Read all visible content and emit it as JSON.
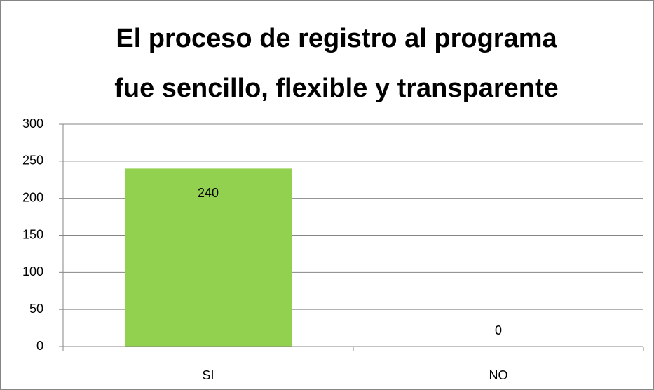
{
  "chart_data": {
    "type": "bar",
    "title": [
      "El proceso de registro al programa",
      "fue sencillo, flexible y transparente"
    ],
    "categories": [
      "SI",
      "NO"
    ],
    "values": [
      240,
      0
    ],
    "color": "#92d050",
    "ylim": [
      0,
      300
    ],
    "yticks": [
      0,
      50,
      100,
      150,
      200,
      250,
      300
    ],
    "grid": true
  }
}
